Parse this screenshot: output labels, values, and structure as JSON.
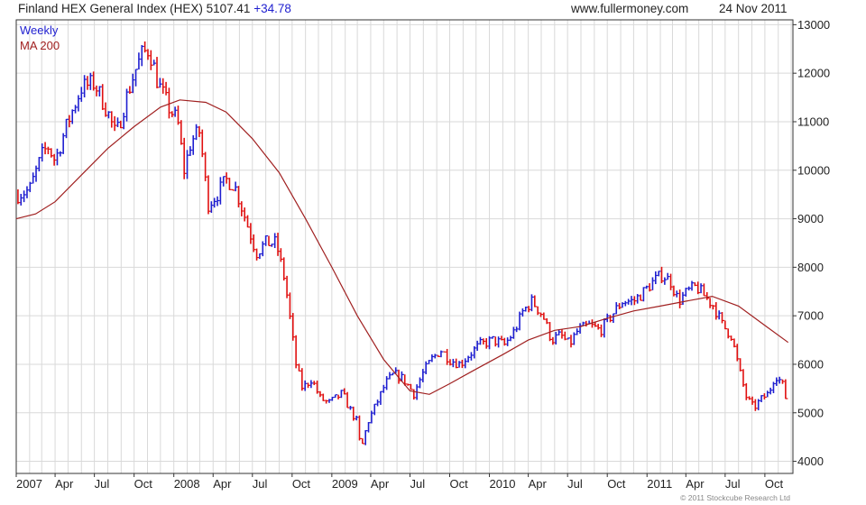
{
  "header": {
    "title": "Finland HEX General Index (HEX)",
    "price": "5107.41",
    "change": "+34.78",
    "website": "www.fullermoney.com",
    "date": "24 Nov 2011"
  },
  "copyright": "© 2011 Stockcube Research Ltd",
  "colors": {
    "up": "#1f1fd0",
    "down": "#e01010",
    "ma": "#a02020",
    "grid": "#d9d9d9",
    "axis": "#333333"
  },
  "chart_data": {
    "type": "line",
    "legend": [
      "Weekly",
      "MA 200"
    ],
    "legend_position": "top-left",
    "grid": true,
    "y_axis_position": "right",
    "ylim": [
      3750,
      13100
    ],
    "yticks": [
      4000,
      5000,
      6000,
      7000,
      8000,
      9000,
      10000,
      11000,
      12000,
      13000
    ],
    "xlim": [
      "2007-01-01",
      "2011-12-05"
    ],
    "xticks": [
      {
        "date": "2007-01-01",
        "label": "2007"
      },
      {
        "date": "2007-04-01",
        "label": "Apr"
      },
      {
        "date": "2007-07-01",
        "label": "Jul"
      },
      {
        "date": "2007-10-01",
        "label": "Oct"
      },
      {
        "date": "2008-01-01",
        "label": "2008"
      },
      {
        "date": "2008-04-01",
        "label": "Apr"
      },
      {
        "date": "2008-07-01",
        "label": "Jul"
      },
      {
        "date": "2008-10-01",
        "label": "Oct"
      },
      {
        "date": "2009-01-01",
        "label": "2009"
      },
      {
        "date": "2009-04-01",
        "label": "Apr"
      },
      {
        "date": "2009-07-01",
        "label": "Jul"
      },
      {
        "date": "2009-10-01",
        "label": "Oct"
      },
      {
        "date": "2010-01-01",
        "label": "2010"
      },
      {
        "date": "2010-04-01",
        "label": "Apr"
      },
      {
        "date": "2010-07-01",
        "label": "Jul"
      },
      {
        "date": "2010-10-01",
        "label": "Oct"
      },
      {
        "date": "2011-01-01",
        "label": "2011"
      },
      {
        "date": "2011-04-01",
        "label": "Apr"
      },
      {
        "date": "2011-07-01",
        "label": "Jul"
      },
      {
        "date": "2011-10-01",
        "label": "Oct"
      }
    ],
    "series": [
      {
        "name": "Weekly",
        "style": "bars",
        "points": [
          [
            "2007-01-05",
            9500
          ],
          [
            "2007-02-01",
            9600
          ],
          [
            "2007-03-01",
            10300
          ],
          [
            "2007-03-15",
            10500
          ],
          [
            "2007-04-01",
            10200
          ],
          [
            "2007-05-01",
            11000
          ],
          [
            "2007-06-01",
            11700
          ],
          [
            "2007-07-01",
            11800
          ],
          [
            "2007-08-01",
            11200
          ],
          [
            "2007-08-20",
            10700
          ],
          [
            "2007-09-10",
            11400
          ],
          [
            "2007-10-01",
            12000
          ],
          [
            "2007-10-20",
            12400
          ],
          [
            "2007-11-05",
            12500
          ],
          [
            "2007-11-25",
            11800
          ],
          [
            "2007-12-20",
            11300
          ],
          [
            "2008-01-10",
            11000
          ],
          [
            "2008-01-25",
            10000
          ],
          [
            "2008-02-10",
            10600
          ],
          [
            "2008-03-01",
            10800
          ],
          [
            "2008-03-20",
            9300
          ],
          [
            "2008-04-10",
            9500
          ],
          [
            "2008-05-01",
            9800
          ],
          [
            "2008-05-20",
            9700
          ],
          [
            "2008-06-15",
            9000
          ],
          [
            "2008-07-10",
            8300
          ],
          [
            "2008-08-01",
            8500
          ],
          [
            "2008-08-25",
            8500
          ],
          [
            "2008-09-15",
            7700
          ],
          [
            "2008-10-10",
            6000
          ],
          [
            "2008-10-25",
            5500
          ],
          [
            "2008-11-15",
            5700
          ],
          [
            "2008-12-05",
            5300
          ],
          [
            "2008-12-25",
            5200
          ],
          [
            "2009-01-10",
            5300
          ],
          [
            "2009-01-25",
            5400
          ],
          [
            "2009-02-10",
            5100
          ],
          [
            "2009-03-01",
            4800
          ],
          [
            "2009-03-09",
            4200
          ],
          [
            "2009-03-25",
            4800
          ],
          [
            "2009-04-15",
            5200
          ],
          [
            "2009-05-05",
            5600
          ],
          [
            "2009-05-25",
            5800
          ],
          [
            "2009-06-15",
            5700
          ],
          [
            "2009-07-10",
            5400
          ],
          [
            "2009-07-30",
            5800
          ],
          [
            "2009-08-20",
            6100
          ],
          [
            "2009-09-10",
            6300
          ],
          [
            "2009-10-01",
            6100
          ],
          [
            "2009-10-25",
            6000
          ],
          [
            "2009-11-15",
            6200
          ],
          [
            "2009-12-10",
            6400
          ],
          [
            "2010-01-10",
            6500
          ],
          [
            "2010-02-05",
            6400
          ],
          [
            "2010-03-01",
            6700
          ],
          [
            "2010-03-20",
            7100
          ],
          [
            "2010-04-10",
            7300
          ],
          [
            "2010-05-05",
            7000
          ],
          [
            "2010-05-25",
            6500
          ],
          [
            "2010-06-15",
            6600
          ],
          [
            "2010-07-05",
            6400
          ],
          [
            "2010-07-25",
            6700
          ],
          [
            "2010-08-20",
            6800
          ],
          [
            "2010-09-15",
            6700
          ],
          [
            "2010-10-10",
            7000
          ],
          [
            "2010-11-05",
            7300
          ],
          [
            "2010-12-01",
            7300
          ],
          [
            "2010-12-25",
            7500
          ],
          [
            "2011-01-15",
            7700
          ],
          [
            "2011-02-05",
            7850
          ],
          [
            "2011-02-25",
            7700
          ],
          [
            "2011-03-15",
            7300
          ],
          [
            "2011-04-05",
            7500
          ],
          [
            "2011-04-25",
            7600
          ],
          [
            "2011-05-15",
            7400
          ],
          [
            "2011-06-05",
            7200
          ],
          [
            "2011-06-25",
            6800
          ],
          [
            "2011-07-15",
            6600
          ],
          [
            "2011-08-05",
            5800
          ],
          [
            "2011-08-20",
            5300
          ],
          [
            "2011-09-05",
            5100
          ],
          [
            "2011-09-25",
            5300
          ],
          [
            "2011-10-10",
            5400
          ],
          [
            "2011-10-25",
            5800
          ],
          [
            "2011-11-10",
            5600
          ],
          [
            "2011-11-24",
            5107
          ]
        ]
      },
      {
        "name": "MA 200",
        "style": "line",
        "points": [
          [
            "2007-01-01",
            9000
          ],
          [
            "2007-02-15",
            9100
          ],
          [
            "2007-04-01",
            9350
          ],
          [
            "2007-06-01",
            9900
          ],
          [
            "2007-08-01",
            10450
          ],
          [
            "2007-10-01",
            10900
          ],
          [
            "2007-12-01",
            11300
          ],
          [
            "2008-01-15",
            11450
          ],
          [
            "2008-03-15",
            11400
          ],
          [
            "2008-05-01",
            11200
          ],
          [
            "2008-07-01",
            10650
          ],
          [
            "2008-09-01",
            9950
          ],
          [
            "2008-11-01",
            9000
          ],
          [
            "2009-01-01",
            8000
          ],
          [
            "2009-03-01",
            7000
          ],
          [
            "2009-05-01",
            6100
          ],
          [
            "2009-07-01",
            5450
          ],
          [
            "2009-08-15",
            5380
          ],
          [
            "2009-10-01",
            5600
          ],
          [
            "2009-12-01",
            5900
          ],
          [
            "2010-02-01",
            6200
          ],
          [
            "2010-04-01",
            6500
          ],
          [
            "2010-06-01",
            6700
          ],
          [
            "2010-08-01",
            6780
          ],
          [
            "2010-10-01",
            6950
          ],
          [
            "2010-12-01",
            7100
          ],
          [
            "2011-02-01",
            7200
          ],
          [
            "2011-04-01",
            7300
          ],
          [
            "2011-06-01",
            7400
          ],
          [
            "2011-08-01",
            7200
          ],
          [
            "2011-10-01",
            6800
          ],
          [
            "2011-11-24",
            6450
          ]
        ]
      }
    ]
  }
}
